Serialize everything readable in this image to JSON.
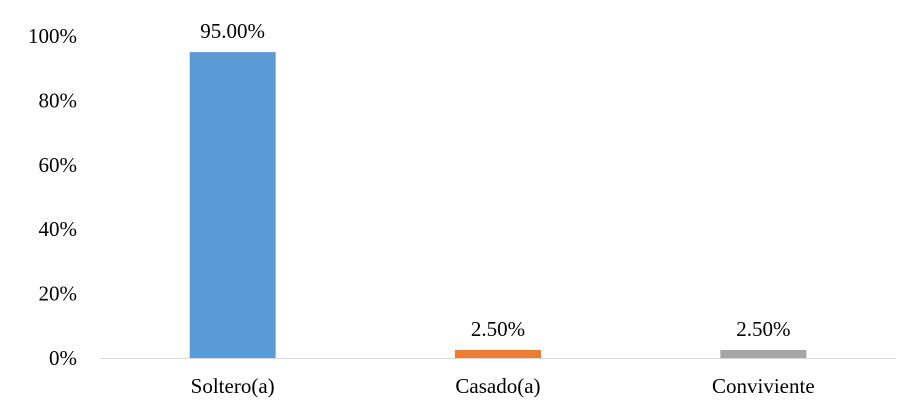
{
  "chart_data": {
    "type": "bar",
    "categories": [
      "Soltero(a)",
      "Casado(a)",
      "Conviviente"
    ],
    "values": [
      95.0,
      2.5,
      2.5
    ],
    "data_labels": [
      "95.00%",
      "2.50%",
      "2.50%"
    ],
    "colors": [
      "#5b9bd5",
      "#ed7d31",
      "#a5a5a5"
    ],
    "y_ticks": [
      0,
      20,
      40,
      60,
      80,
      100
    ],
    "y_tick_labels": [
      "0%",
      "20%",
      "40%",
      "60%",
      "80%",
      "100%"
    ],
    "ylim": [
      0,
      100
    ],
    "grid": false,
    "legend": "none",
    "axis_color": "#d9d9d9"
  }
}
